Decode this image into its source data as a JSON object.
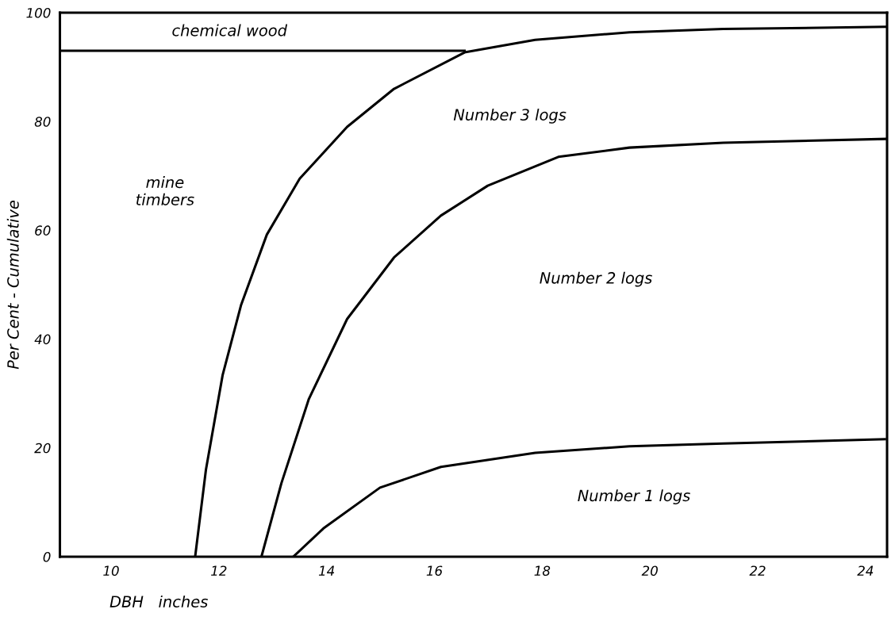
{
  "chart_data": {
    "type": "line",
    "xlabel": "DBH   inches",
    "ylabel": "Per Cent - Cumulative",
    "xlim": [
      9.05,
      24.4
    ],
    "ylim": [
      0,
      100
    ],
    "xticks": [
      10,
      12,
      14,
      16,
      18,
      20,
      22,
      24
    ],
    "yticks": [
      0,
      20,
      40,
      60,
      80,
      100
    ],
    "grid": false,
    "legend": false,
    "marker": "none",
    "line_style": "solid",
    "series": [
      {
        "color": "#000000",
        "x": [
          9.05,
          16.56
        ],
        "values": [
          93,
          93
        ]
      },
      {
        "color": "#000000",
        "x": [
          11.56,
          11.76,
          12.07,
          12.41,
          12.89,
          13.5,
          14.38,
          15.25,
          16.56,
          17.87,
          19.62,
          21.36,
          24.4
        ],
        "values": [
          0,
          16,
          33.4,
          46.2,
          59.2,
          69.5,
          79,
          86,
          92.7,
          95,
          96.4,
          97,
          97.4
        ]
      },
      {
        "color": "#000000",
        "x": [
          12.79,
          13.16,
          13.67,
          14.38,
          15.25,
          16.12,
          16.99,
          18.3,
          19.62,
          21.36,
          24.4
        ],
        "values": [
          0,
          13.5,
          29,
          43.7,
          55,
          62.7,
          68.2,
          73.5,
          75.2,
          76.1,
          76.8
        ]
      },
      {
        "color": "#000000",
        "x": [
          13.38,
          13.94,
          14.99,
          16.12,
          17.87,
          19.62,
          21.36,
          24.36
        ],
        "values": [
          0,
          5.2,
          12.7,
          16.5,
          19.1,
          20.3,
          20.8,
          21.6
        ]
      }
    ],
    "annotations": [
      "chemical wood",
      "Number 3 logs",
      "mine\ntimbers",
      "Number 2 logs",
      "Number 1 logs"
    ]
  }
}
